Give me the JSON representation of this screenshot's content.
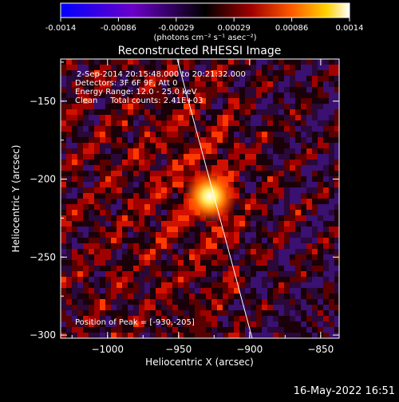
{
  "colorbar": {
    "ticks": [
      "-0.0014",
      "-0.00086",
      "-0.00029",
      "0.00029",
      "0.00086",
      "0.0014"
    ],
    "units": "(photons cm⁻² s⁻¹ asec⁻²)",
    "colors": [
      "#0000ff",
      "#6a00c8",
      "#000000",
      "#a00000",
      "#ff5a00",
      "#ffd200",
      "#ffffff"
    ]
  },
  "plot": {
    "title": "Reconstructed RHESSI Image",
    "xlabel": "Heliocentric X (arcsec)",
    "ylabel": "Heliocentric Y (arcsec)",
    "xticks": [
      "-1000",
      "-950",
      "-900",
      "-850"
    ],
    "yticks": [
      "-150",
      "-200",
      "-250",
      "-300"
    ],
    "xlim": [
      -1033,
      -837
    ],
    "ylim": [
      -302,
      -123
    ]
  },
  "annotations": {
    "time_range": "2-Sep-2014 20:15:48.000 to 20:21:32.000",
    "detectors": "Detectors: 3F 6F 9F, Att 0",
    "energy_range": "Energy Range: 12.0 - 25.0 keV",
    "method_counts": "Clean     Total counts: 2.41E+03",
    "peak": "Position of Peak = [-930,-205]"
  },
  "peak_position": [
    -930,
    -205
  ],
  "footer_timestamp": "16-May-2022 16:51"
}
